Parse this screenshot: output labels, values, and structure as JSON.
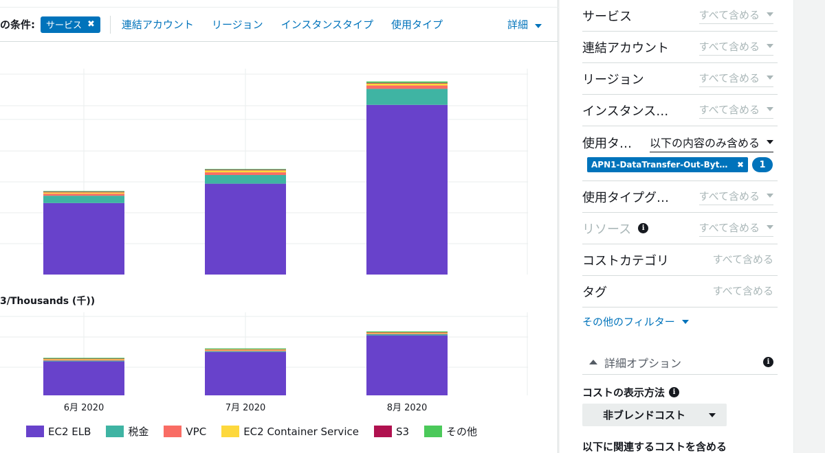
{
  "filter_bar": {
    "label": "の条件:",
    "active_chip": "サービス",
    "links": [
      "連結アカウント",
      "リージョン",
      "インスタンスタイプ",
      "使用タイプ"
    ],
    "detail_label": "詳細"
  },
  "chart": {
    "axis_title": "3/Thousands (千))"
  },
  "chart_data": [
    {
      "type": "bar",
      "stacked": true,
      "categories": [
        "6月 2020",
        "7月 2020",
        "8月 2020"
      ],
      "series": [
        {
          "name": "EC2 ELB",
          "color": "#6842cb",
          "values": [
            107,
            136,
            254
          ]
        },
        {
          "name": "税金",
          "color": "#3fb4a3",
          "values": [
            11,
            13,
            24
          ]
        },
        {
          "name": "VPC",
          "color": "#f96c64",
          "values": [
            3,
            4,
            5
          ]
        },
        {
          "name": "EC2 Container Service",
          "color": "#fdd83d",
          "values": [
            2,
            3,
            3
          ]
        },
        {
          "name": "S3",
          "color": "#b0114f",
          "values": [
            1,
            1,
            1
          ]
        },
        {
          "name": "その他",
          "color": "#4bc95a",
          "values": [
            1,
            1,
            2
          ]
        }
      ],
      "ylim": [
        0,
        300
      ],
      "grid": true
    },
    {
      "type": "bar",
      "stacked": true,
      "categories": [
        "6月 2020",
        "7月 2020",
        "8月 2020"
      ],
      "series": [
        {
          "name": "EC2 ELB",
          "color": "#6842cb",
          "values": [
            43,
            55,
            76
          ]
        },
        {
          "name": "税金",
          "color": "#3fb4a3",
          "values": [
            1,
            1,
            1.5
          ]
        },
        {
          "name": "VPC",
          "color": "#f96c64",
          "values": [
            1,
            1,
            1
          ]
        },
        {
          "name": "EC2 Container Service",
          "color": "#fdd83d",
          "values": [
            1,
            1,
            1
          ]
        },
        {
          "name": "S3",
          "color": "#b0114f",
          "values": [
            0.5,
            0.5,
            0.5
          ]
        },
        {
          "name": "その他",
          "color": "#4bc95a",
          "values": [
            1,
            1,
            1
          ]
        }
      ],
      "ylim": [
        0,
        100
      ],
      "grid": true
    }
  ],
  "side_panel": {
    "filters": [
      {
        "name": "サービス",
        "value": "すべて含める"
      },
      {
        "name": "連結アカウント",
        "value": "すべて含める"
      },
      {
        "name": "リージョン",
        "value": "すべて含める"
      },
      {
        "name": "インスタンス…",
        "value": "すべて含める"
      },
      {
        "name": "使用タ…",
        "value": "以下の内容のみ含める"
      },
      {
        "name": "使用タイプグ…",
        "value": "すべて含める"
      },
      {
        "name": "リソース",
        "value": "すべて含める"
      },
      {
        "name": "コストカテゴリ",
        "value": "すべて含める"
      },
      {
        "name": "タグ",
        "value": "すべて含める"
      }
    ],
    "usage_chip": "APN1-DataTransfer-Out-Byte…",
    "usage_count": "1",
    "more_filters": "その他のフィルター",
    "advanced_options": "詳細オプション",
    "display_method_title": "コストの表示方法",
    "display_method_value": "非ブレンドコスト",
    "related_cost_title": "以下に関連するコストを含める"
  },
  "icons": {
    "close": "✖",
    "info": "i"
  }
}
